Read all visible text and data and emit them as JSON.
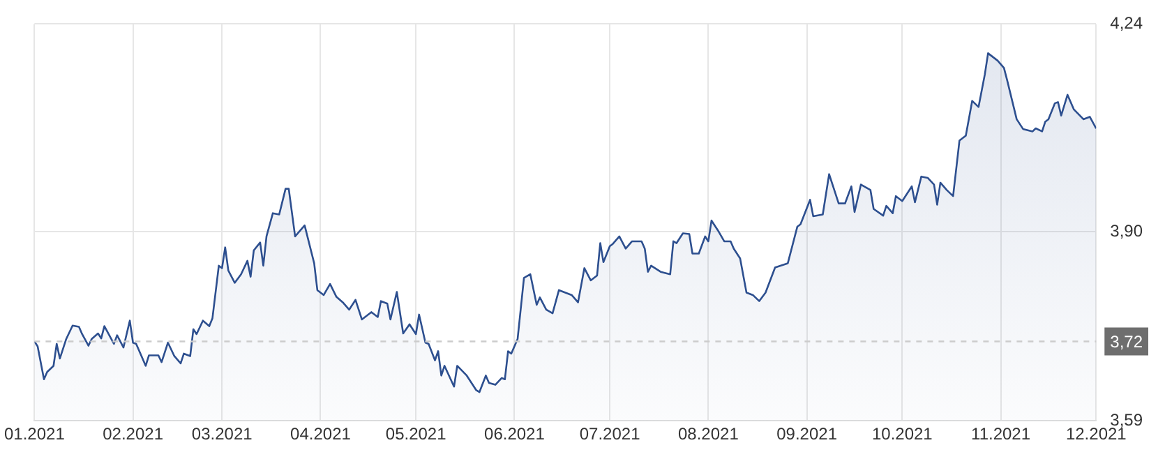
{
  "chart_data": {
    "type": "area",
    "x": [
      "2021-01-01",
      "2021-01-02",
      "2021-01-04",
      "2021-01-05",
      "2021-01-07",
      "2021-01-08",
      "2021-01-09",
      "2021-01-11",
      "2021-01-13",
      "2021-01-15",
      "2021-01-16",
      "2021-01-18",
      "2021-01-19",
      "2021-01-21",
      "2021-01-22",
      "2021-01-23",
      "2021-01-26",
      "2021-01-27",
      "2021-01-29",
      "2021-01-31",
      "2021-02-01",
      "2021-02-02",
      "2021-02-05",
      "2021-02-06",
      "2021-02-09",
      "2021-02-10",
      "2021-02-12",
      "2021-02-14",
      "2021-02-16",
      "2021-02-17",
      "2021-02-19",
      "2021-02-20",
      "2021-02-21",
      "2021-02-23",
      "2021-02-25",
      "2021-02-26",
      "2021-02-28",
      "2021-03-01",
      "2021-03-02",
      "2021-03-03",
      "2021-03-05",
      "2021-03-07",
      "2021-03-09",
      "2021-03-10",
      "2021-03-11",
      "2021-03-13",
      "2021-03-14",
      "2021-03-15",
      "2021-03-17",
      "2021-03-19",
      "2021-03-21",
      "2021-03-22",
      "2021-03-24",
      "2021-03-27",
      "2021-03-30",
      "2021-03-31",
      "2021-04-02",
      "2021-04-04",
      "2021-04-06",
      "2021-04-08",
      "2021-04-10",
      "2021-04-12",
      "2021-04-14",
      "2021-04-17",
      "2021-04-19",
      "2021-04-20",
      "2021-04-22",
      "2021-04-23",
      "2021-04-25",
      "2021-04-27",
      "2021-04-29",
      "2021-05-01",
      "2021-05-02",
      "2021-05-04",
      "2021-05-05",
      "2021-05-07",
      "2021-05-08",
      "2021-05-09",
      "2021-05-10",
      "2021-05-13",
      "2021-05-14",
      "2021-05-17",
      "2021-05-20",
      "2021-05-21",
      "2021-05-23",
      "2021-05-24",
      "2021-05-26",
      "2021-05-28",
      "2021-05-29",
      "2021-05-30",
      "2021-05-31",
      "2021-06-02",
      "2021-06-04",
      "2021-06-06",
      "2021-06-08",
      "2021-06-09",
      "2021-06-11",
      "2021-06-13",
      "2021-06-15",
      "2021-06-19",
      "2021-06-21",
      "2021-06-23",
      "2021-06-25",
      "2021-06-27",
      "2021-06-28",
      "2021-06-29",
      "2021-07-01",
      "2021-07-02",
      "2021-07-04",
      "2021-07-06",
      "2021-07-08",
      "2021-07-11",
      "2021-07-12",
      "2021-07-13",
      "2021-07-14",
      "2021-07-17",
      "2021-07-20",
      "2021-07-21",
      "2021-07-22",
      "2021-07-24",
      "2021-07-26",
      "2021-07-27",
      "2021-07-29",
      "2021-07-31",
      "2021-08-01",
      "2021-08-02",
      "2021-08-04",
      "2021-08-06",
      "2021-08-08",
      "2021-08-09",
      "2021-08-11",
      "2021-08-13",
      "2021-08-15",
      "2021-08-17",
      "2021-08-19",
      "2021-08-22",
      "2021-08-26",
      "2021-08-29",
      "2021-08-30",
      "2021-09-02",
      "2021-09-03",
      "2021-09-06",
      "2021-09-08",
      "2021-09-11",
      "2021-09-13",
      "2021-09-15",
      "2021-09-16",
      "2021-09-18",
      "2021-09-21",
      "2021-09-22",
      "2021-09-25",
      "2021-09-26",
      "2021-09-28",
      "2021-09-29",
      "2021-10-01",
      "2021-10-04",
      "2021-10-05",
      "2021-10-07",
      "2021-10-09",
      "2021-10-11",
      "2021-10-12",
      "2021-10-13",
      "2021-10-15",
      "2021-10-17",
      "2021-10-19",
      "2021-10-21",
      "2021-10-23",
      "2021-10-25",
      "2021-10-27",
      "2021-10-28",
      "2021-10-31",
      "2021-11-02",
      "2021-11-03",
      "2021-11-06",
      "2021-11-08",
      "2021-11-11",
      "2021-11-12",
      "2021-11-14",
      "2021-11-15",
      "2021-11-16",
      "2021-11-18",
      "2021-11-19",
      "2021-11-20",
      "2021-11-22",
      "2021-11-24",
      "2021-11-27",
      "2021-11-29",
      "2021-12-01"
    ],
    "series": [
      {
        "color": "#2d4f8f",
        "values": [
          3.72,
          3.712,
          3.658,
          3.67,
          3.68,
          3.716,
          3.692,
          3.724,
          3.746,
          3.744,
          3.732,
          3.713,
          3.724,
          3.733,
          3.725,
          3.745,
          3.716,
          3.73,
          3.71,
          3.754,
          3.718,
          3.716,
          3.68,
          3.697,
          3.697,
          3.686,
          3.718,
          3.696,
          3.684,
          3.7,
          3.696,
          3.74,
          3.732,
          3.754,
          3.745,
          3.758,
          3.844,
          3.84,
          3.874,
          3.836,
          3.816,
          3.83,
          3.852,
          3.826,
          3.869,
          3.882,
          3.844,
          3.892,
          3.93,
          3.928,
          3.97,
          3.97,
          3.892,
          3.91,
          3.848,
          3.804,
          3.796,
          3.814,
          3.793,
          3.784,
          3.772,
          3.788,
          3.756,
          3.768,
          3.76,
          3.786,
          3.782,
          3.756,
          3.801,
          3.733,
          3.748,
          3.732,
          3.764,
          3.718,
          3.716,
          3.689,
          3.704,
          3.664,
          3.68,
          3.646,
          3.68,
          3.664,
          3.64,
          3.637,
          3.664,
          3.652,
          3.649,
          3.66,
          3.658,
          3.704,
          3.7,
          3.724,
          3.824,
          3.83,
          3.78,
          3.792,
          3.772,
          3.766,
          3.804,
          3.796,
          3.784,
          3.84,
          3.82,
          3.828,
          3.881,
          3.85,
          3.876,
          3.88,
          3.892,
          3.872,
          3.884,
          3.884,
          3.872,
          3.834,
          3.844,
          3.834,
          3.83,
          3.884,
          3.881,
          3.897,
          3.896,
          3.864,
          3.864,
          3.892,
          3.884,
          3.918,
          3.902,
          3.884,
          3.884,
          3.872,
          3.856,
          3.8,
          3.796,
          3.786,
          3.8,
          3.841,
          3.848,
          3.908,
          3.912,
          3.952,
          3.925,
          3.928,
          3.994,
          3.946,
          3.946,
          3.974,
          3.932,
          3.977,
          3.968,
          3.937,
          3.926,
          3.942,
          3.93,
          3.958,
          3.95,
          3.974,
          3.948,
          3.99,
          3.988,
          3.977,
          3.944,
          3.98,
          3.968,
          3.958,
          4.049,
          4.057,
          4.114,
          4.104,
          4.158,
          4.192,
          4.18,
          4.168,
          4.148,
          4.084,
          4.068,
          4.064,
          4.069,
          4.064,
          4.08,
          4.084,
          4.11,
          4.112,
          4.09,
          4.124,
          4.1,
          4.084,
          4.088,
          4.069
        ]
      }
    ],
    "xlim": [
      "2021-01-01",
      "2021-12-01"
    ],
    "xticks": [
      {
        "value": "2021-01-01",
        "label": "01.2021"
      },
      {
        "value": "2021-02-01",
        "label": "02.2021"
      },
      {
        "value": "2021-03-01",
        "label": "03.2021"
      },
      {
        "value": "2021-04-01",
        "label": "04.2021"
      },
      {
        "value": "2021-05-01",
        "label": "05.2021"
      },
      {
        "value": "2021-06-01",
        "label": "06.2021"
      },
      {
        "value": "2021-07-01",
        "label": "07.2021"
      },
      {
        "value": "2021-08-01",
        "label": "08.2021"
      },
      {
        "value": "2021-09-01",
        "label": "09.2021"
      },
      {
        "value": "2021-10-01",
        "label": "10.2021"
      },
      {
        "value": "2021-11-01",
        "label": "11.2021"
      },
      {
        "value": "2021-12-01",
        "label": "12.2021"
      }
    ],
    "ylim": [
      3.59,
      4.24
    ],
    "yticks": [
      {
        "value": 3.59,
        "label": "3,59"
      },
      {
        "value": 3.9,
        "label": "3,90"
      },
      {
        "value": 4.24,
        "label": "4,24"
      }
    ],
    "ref_lines": [
      {
        "axis": "y",
        "value": 3.72,
        "label": "3,72",
        "color": "#cccccc",
        "line_style": "dashed"
      }
    ],
    "grid": true
  }
}
